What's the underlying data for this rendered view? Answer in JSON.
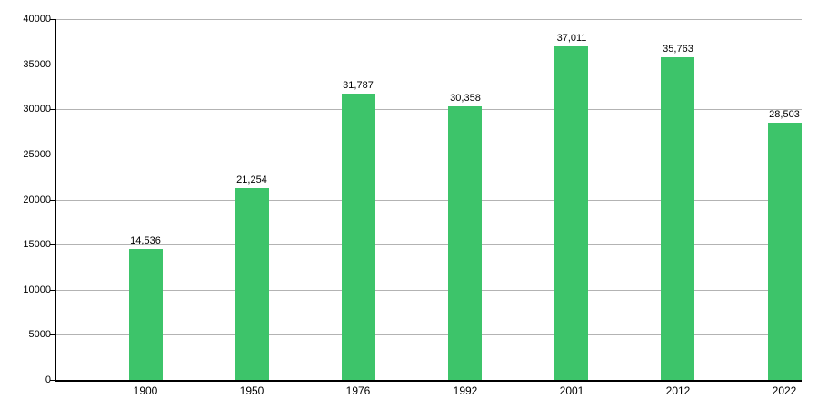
{
  "chart_data": {
    "type": "bar",
    "title": "",
    "xlabel": "",
    "ylabel": "",
    "categories": [
      "1900",
      "1950",
      "1976",
      "1992",
      "2001",
      "2012",
      "2022"
    ],
    "values": [
      14536,
      21254,
      31787,
      30358,
      37011,
      35763,
      28503
    ],
    "value_labels": [
      "14,536",
      "21,254",
      "31,787",
      "30,358",
      "37,011",
      "35,763",
      "28,503"
    ],
    "ylim": [
      0,
      40000
    ],
    "ytick_step": 5000,
    "ytick_labels": [
      "0",
      "5000",
      "10000",
      "15000",
      "20000",
      "25000",
      "30000",
      "35000",
      "40000"
    ],
    "grid": true,
    "legend": "none",
    "bar_color": "#3dc46a",
    "gridline_color": "#b3b3b3",
    "axis_color": "#000000",
    "background_color": "#ffffff",
    "label_color": "#000000"
  }
}
